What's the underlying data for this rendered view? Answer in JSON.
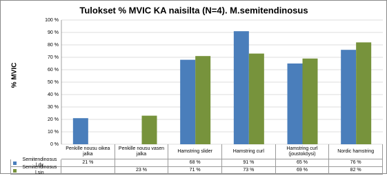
{
  "chart_data": {
    "type": "bar",
    "title": "Tulokset % MVIC KA naisilta (N=4). M.semitendinosus",
    "y_label": "% MVIC",
    "categories": [
      "Penkille nousu oikea jalka",
      "Penkille nousu vasen jalka",
      "Hamstring slider",
      "Hamstring curl",
      "Hamstring curl (joustoköysi)",
      "Nordic hamstring"
    ],
    "series": [
      {
        "name": "Semitendinosus l.dx",
        "color": "#4a7ebb",
        "values": [
          21,
          null,
          68,
          91,
          65,
          76
        ],
        "value_labels": [
          "21 %",
          null,
          "68 %",
          "91 %",
          "65 %",
          "76 %"
        ]
      },
      {
        "name": "Semitendinosus l.sin",
        "color": "#77933c",
        "values": [
          null,
          23,
          71,
          73,
          69,
          82
        ],
        "value_labels": [
          null,
          "23 %",
          "71 %",
          "73 %",
          "69 %",
          "82 %"
        ]
      }
    ],
    "ylim": [
      0,
      100
    ],
    "yticks": [
      {
        "value": 0,
        "label": "0 %"
      },
      {
        "value": 10,
        "label": "10 %"
      },
      {
        "value": 20,
        "label": "20 %"
      },
      {
        "value": 30,
        "label": "30 %"
      },
      {
        "value": 40,
        "label": "40 %"
      },
      {
        "value": 50,
        "label": "50 %"
      },
      {
        "value": 60,
        "label": "60 %"
      },
      {
        "value": 70,
        "label": "70 %"
      },
      {
        "value": 80,
        "label": "80 %"
      },
      {
        "value": 90,
        "label": "90 %"
      },
      {
        "value": 100,
        "label": "100 %"
      }
    ],
    "grid": true
  }
}
